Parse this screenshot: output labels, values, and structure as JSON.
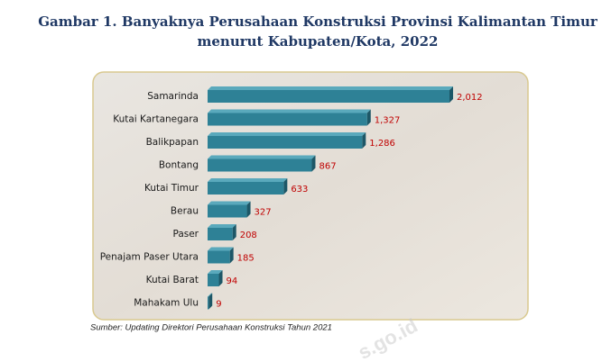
{
  "chart_data": {
    "type": "bar",
    "orientation": "horizontal",
    "title": [
      "Gambar 1. Banyaknya Perusahaan Konstruksi Provinsi Kalimantan Timur",
      "menurut Kabupaten/Kota, 2022"
    ],
    "categories": [
      "Samarinda",
      "Kutai Kartanegara",
      "Balikpapan",
      "Bontang",
      "Kutai Timur",
      "Berau",
      "Paser",
      "Penajam Paser Utara",
      "Kutai Barat",
      "Mahakam Ulu"
    ],
    "values": [
      2012,
      1327,
      1286,
      867,
      633,
      327,
      208,
      185,
      94,
      9
    ],
    "value_labels": [
      "2,012",
      "1,327",
      "1,286",
      "867",
      "633",
      "327",
      "208",
      "185",
      "94",
      "9"
    ],
    "color": "#2e8196",
    "source": "Sumber: Updating Direktori Perusahaan Konstruksi Tahun 2021",
    "watermark": "s.go.id"
  }
}
